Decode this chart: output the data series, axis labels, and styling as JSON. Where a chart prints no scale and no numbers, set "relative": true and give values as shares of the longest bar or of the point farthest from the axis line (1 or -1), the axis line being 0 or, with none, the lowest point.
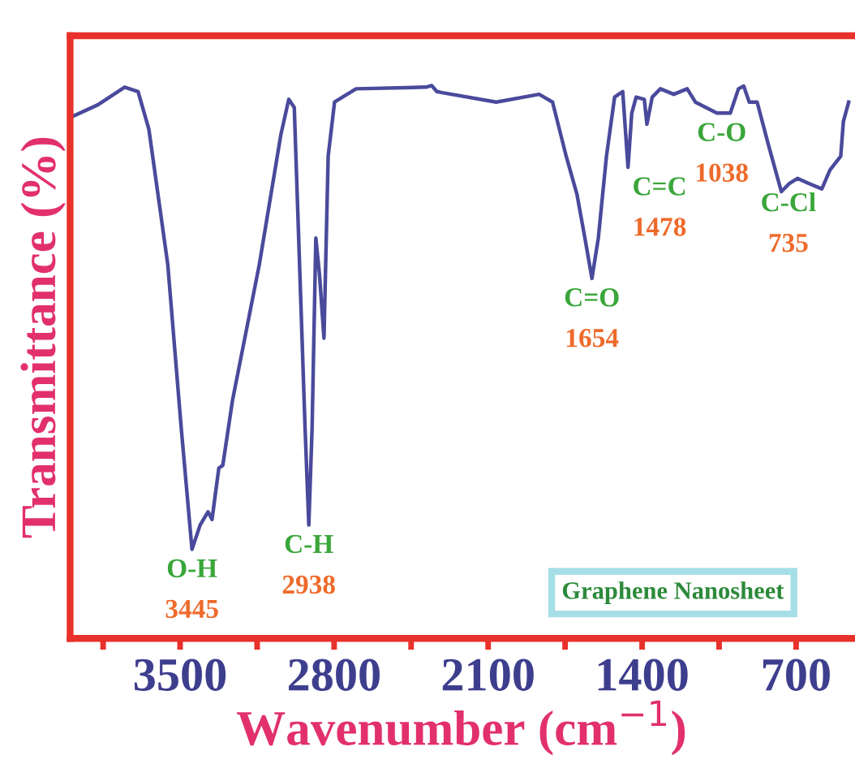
{
  "chart_data": {
    "type": "line",
    "relative": true,
    "xlabel": "Wavenumber (cm$^{−1}$)",
    "ylabel": "Transmittance (%)",
    "xlim": [
      4000,
      440
    ],
    "xticks": [
      {
        "value": 3850,
        "label": null
      },
      3500,
      {
        "value": 3150,
        "label": null
      },
      2800,
      {
        "value": 2450,
        "label": null
      },
      2100,
      {
        "value": 1750,
        "label": null
      },
      1400,
      {
        "value": 1050,
        "label": null
      },
      700
    ],
    "grid": false,
    "legend": "bottom right",
    "marker": "none",
    "line_style": "solid",
    "series": [
      {
        "name": "Graphene Nanosheet",
        "color": "#4a4a9c",
        "x": [
          3984,
          3874,
          3752,
          3691,
          3642,
          3556,
          3495,
          3446,
          3409,
          3373,
          3355,
          3324,
          3306,
          3262,
          3140,
          3042,
          3006,
          2981,
          2957,
          2932,
          2915,
          2900,
          2883,
          2866,
          2846,
          2827,
          2798,
          2700,
          2382,
          2357,
          2333,
          2308,
          2063,
          1868,
          1807,
          1745,
          1696,
          1660,
          1628,
          1599,
          1562,
          1525,
          1488,
          1464,
          1447,
          1427,
          1390,
          1378,
          1354,
          1317,
          1256,
          1195,
          1158,
          1109,
          1060,
          999,
          962,
          938,
          913,
          877,
          828,
          767,
          730,
          693,
          644,
          583,
          546,
          497,
          485,
          461
        ],
        "values": [
          0.945,
          0.965,
          0.997,
          0.989,
          0.921,
          0.676,
          0.381,
          0.161,
          0.205,
          0.229,
          0.215,
          0.308,
          0.313,
          0.43,
          0.676,
          0.911,
          0.975,
          0.96,
          0.676,
          0.381,
          0.205,
          0.381,
          0.724,
          0.656,
          0.543,
          0.872,
          0.97,
          0.994,
          0.997,
          1.0,
          0.989,
          0.987,
          0.97,
          0.984,
          0.97,
          0.872,
          0.803,
          0.724,
          0.651,
          0.724,
          0.872,
          0.979,
          0.989,
          0.852,
          0.95,
          0.979,
          0.975,
          0.93,
          0.979,
          0.994,
          0.984,
          0.994,
          0.97,
          0.96,
          0.95,
          0.95,
          0.994,
          0.999,
          0.97,
          0.97,
          0.896,
          0.808,
          0.823,
          0.832,
          0.823,
          0.813,
          0.847,
          0.872,
          0.935,
          0.97
        ]
      }
    ],
    "annotations": [
      {
        "text": "O-H\n3445",
        "x": 3446,
        "y": 0.161
      },
      {
        "text": "C-H\n2938",
        "x": 2915,
        "y": 0.205
      },
      {
        "text": "C=O\n1654",
        "x": 1628,
        "y": 0.651
      },
      {
        "text": "C=C\n1478",
        "x": 1464,
        "y": 0.852
      },
      {
        "text": "C-O\n1038",
        "x": 1038,
        "y": 0.95
      },
      {
        "text": "C-Cl\n735",
        "x": 735,
        "y": 0.823
      }
    ]
  }
}
